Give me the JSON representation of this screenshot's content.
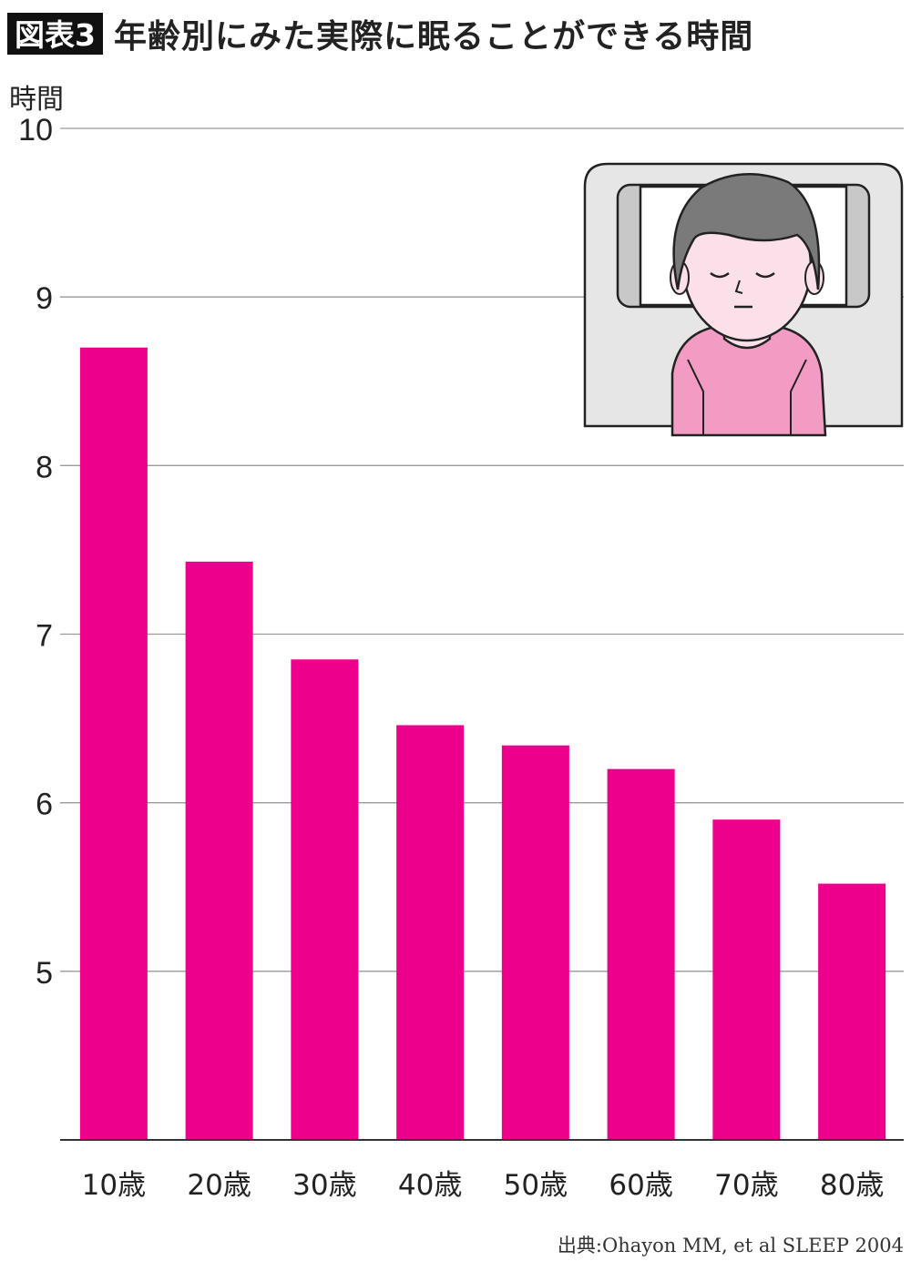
{
  "figure": {
    "badge": "図表3",
    "title": "年齢別にみた実際に眠ることができる時間"
  },
  "source": "出典:Ohayon MM, et al SLEEP 2004",
  "colors": {
    "bar": "#EC008C",
    "grid": "#9a9a9a",
    "axis": "#333333"
  },
  "chart_data": {
    "type": "bar",
    "ylabel": "時間",
    "xlabel": "",
    "ylim": [
      4,
      10
    ],
    "yticks": [
      5,
      6,
      7,
      8,
      9,
      10
    ],
    "grid": true,
    "categories": [
      "10歳",
      "20歳",
      "30歳",
      "40歳",
      "50歳",
      "60歳",
      "70歳",
      "80歳"
    ],
    "values": [
      8.7,
      7.43,
      6.85,
      6.46,
      6.34,
      6.2,
      5.9,
      5.52
    ]
  }
}
